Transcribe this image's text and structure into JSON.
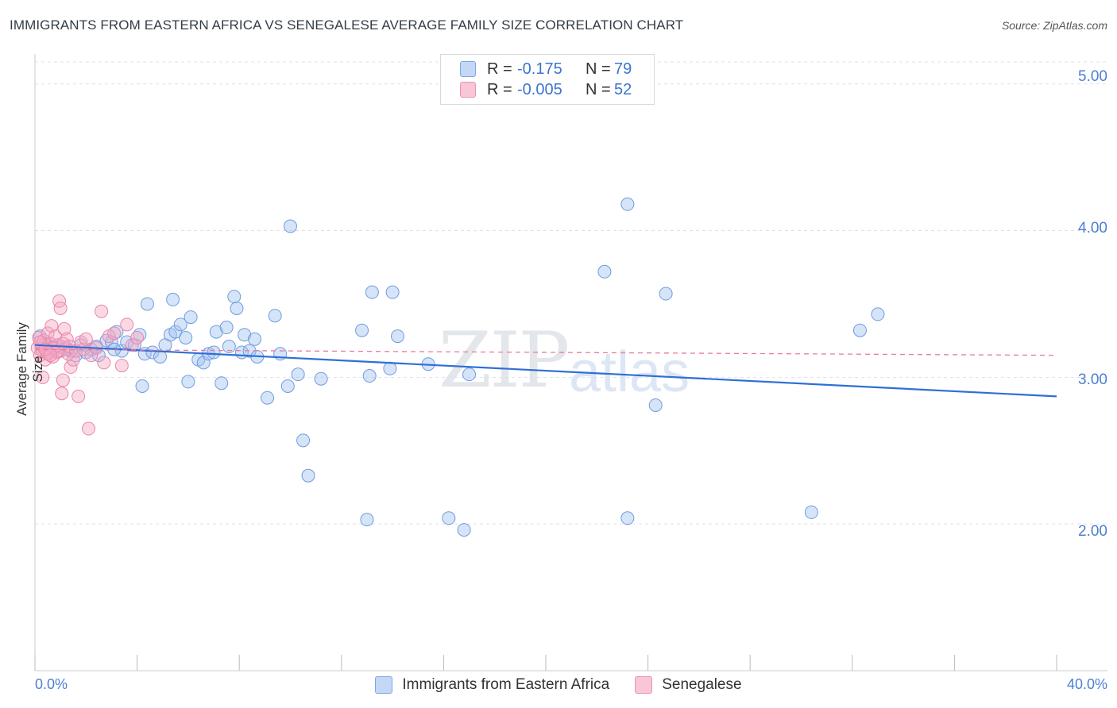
{
  "title": "IMMIGRANTS FROM EASTERN AFRICA VS SENEGALESE AVERAGE FAMILY SIZE CORRELATION CHART",
  "source": "Source: ZipAtlas.com",
  "watermark": {
    "zip": "ZIP",
    "atlas": "atlas"
  },
  "legend": {
    "rows": [
      {
        "r_label": "R =",
        "r_value": "-0.175",
        "n_label": "N =",
        "n_value": "79",
        "color": "#6699e0"
      },
      {
        "r_label": "R =",
        "r_value": "-0.005",
        "n_label": "N =",
        "n_value": "52",
        "color": "#e87aa0"
      }
    ]
  },
  "bottom_legend": [
    "Immigrants from Eastern Africa",
    "Senegalese"
  ],
  "chart_data": {
    "type": "scatter",
    "title": "IMMIGRANTS FROM EASTERN AFRICA VS SENEGALESE AVERAGE FAMILY SIZE CORRELATION CHART",
    "xlabel": "",
    "ylabel": "Average Family Size",
    "xlim": [
      0,
      40
    ],
    "ylim": [
      1.0,
      5.15
    ],
    "x_tick_labels": [
      "0.0%",
      "40.0%"
    ],
    "y_ticks": [
      2.0,
      3.0,
      4.0,
      5.0
    ],
    "y_tick_labels": [
      "2.00",
      "3.00",
      "4.00",
      "5.00"
    ],
    "series": [
      {
        "name": "Immigrants from Eastern Africa",
        "color": "#6699e0",
        "trend": {
          "x": [
            0,
            40
          ],
          "y": [
            3.22,
            2.87
          ]
        },
        "points": [
          [
            0.2,
            3.28
          ],
          [
            0.4,
            3.22
          ],
          [
            0.6,
            3.18
          ],
          [
            0.8,
            3.2
          ],
          [
            1.0,
            3.21
          ],
          [
            1.2,
            3.2
          ],
          [
            1.4,
            3.18
          ],
          [
            1.6,
            3.15
          ],
          [
            1.8,
            3.22
          ],
          [
            2.0,
            3.17
          ],
          [
            2.2,
            3.19
          ],
          [
            2.5,
            3.15
          ],
          [
            2.8,
            3.25
          ],
          [
            3.0,
            3.24
          ],
          [
            3.2,
            3.31
          ],
          [
            3.4,
            3.18
          ],
          [
            3.6,
            3.24
          ],
          [
            3.9,
            3.22
          ],
          [
            4.1,
            3.29
          ],
          [
            4.3,
            3.16
          ],
          [
            4.2,
            2.94
          ],
          [
            4.4,
            3.5
          ],
          [
            4.6,
            3.17
          ],
          [
            4.9,
            3.14
          ],
          [
            5.1,
            3.22
          ],
          [
            5.3,
            3.29
          ],
          [
            5.4,
            3.53
          ],
          [
            5.5,
            3.31
          ],
          [
            5.7,
            3.36
          ],
          [
            5.9,
            3.27
          ],
          [
            6.0,
            2.97
          ],
          [
            6.1,
            3.41
          ],
          [
            6.4,
            3.12
          ],
          [
            6.6,
            3.1
          ],
          [
            6.8,
            3.16
          ],
          [
            7.0,
            3.17
          ],
          [
            7.1,
            3.31
          ],
          [
            7.3,
            2.96
          ],
          [
            7.5,
            3.34
          ],
          [
            7.6,
            3.21
          ],
          [
            7.8,
            3.55
          ],
          [
            7.9,
            3.47
          ],
          [
            8.1,
            3.17
          ],
          [
            8.2,
            3.29
          ],
          [
            8.4,
            3.18
          ],
          [
            8.6,
            3.26
          ],
          [
            8.7,
            3.14
          ],
          [
            9.1,
            2.86
          ],
          [
            9.4,
            3.42
          ],
          [
            9.6,
            3.16
          ],
          [
            9.9,
            2.94
          ],
          [
            10.0,
            4.03
          ],
          [
            10.3,
            3.02
          ],
          [
            10.5,
            2.57
          ],
          [
            10.7,
            2.33
          ],
          [
            11.2,
            2.99
          ],
          [
            12.8,
            3.32
          ],
          [
            13.0,
            2.03
          ],
          [
            13.1,
            3.01
          ],
          [
            13.2,
            3.58
          ],
          [
            13.9,
            3.06
          ],
          [
            14.0,
            3.58
          ],
          [
            14.2,
            3.28
          ],
          [
            15.4,
            3.09
          ],
          [
            16.2,
            2.04
          ],
          [
            16.8,
            1.96
          ],
          [
            17.0,
            3.02
          ],
          [
            22.3,
            3.72
          ],
          [
            23.2,
            4.18
          ],
          [
            23.2,
            2.04
          ],
          [
            24.3,
            2.81
          ],
          [
            24.7,
            3.57
          ],
          [
            30.4,
            2.08
          ],
          [
            32.3,
            3.32
          ],
          [
            33.0,
            3.43
          ],
          [
            1.0,
            3.18
          ],
          [
            2.4,
            3.21
          ],
          [
            3.1,
            3.19
          ],
          [
            0.6,
            3.23
          ]
        ]
      },
      {
        "name": "Senegalese",
        "color": "#e87aa0",
        "trend": {
          "x": [
            0,
            40
          ],
          "y": [
            3.19,
            3.15
          ]
        },
        "points": [
          [
            0.1,
            3.2
          ],
          [
            0.15,
            3.27
          ],
          [
            0.2,
            3.15
          ],
          [
            0.25,
            3.22
          ],
          [
            0.3,
            3.18
          ],
          [
            0.35,
            3.25
          ],
          [
            0.4,
            3.12
          ],
          [
            0.45,
            3.2
          ],
          [
            0.5,
            3.3
          ],
          [
            0.55,
            3.17
          ],
          [
            0.6,
            3.23
          ],
          [
            0.65,
            3.35
          ],
          [
            0.7,
            3.14
          ],
          [
            0.75,
            3.2
          ],
          [
            0.8,
            3.28
          ],
          [
            0.85,
            3.17
          ],
          [
            0.9,
            3.22
          ],
          [
            0.95,
            3.52
          ],
          [
            1.0,
            3.47
          ],
          [
            1.05,
            2.89
          ],
          [
            1.1,
            2.98
          ],
          [
            1.15,
            3.33
          ],
          [
            1.2,
            3.19
          ],
          [
            1.25,
            3.26
          ],
          [
            1.3,
            3.16
          ],
          [
            1.35,
            3.21
          ],
          [
            1.4,
            3.07
          ],
          [
            1.5,
            3.12
          ],
          [
            1.6,
            3.18
          ],
          [
            1.7,
            2.87
          ],
          [
            1.8,
            3.24
          ],
          [
            1.9,
            3.19
          ],
          [
            2.0,
            3.26
          ],
          [
            2.1,
            2.65
          ],
          [
            2.2,
            3.15
          ],
          [
            2.4,
            3.2
          ],
          [
            2.6,
            3.45
          ],
          [
            2.7,
            3.1
          ],
          [
            2.9,
            3.28
          ],
          [
            3.1,
            3.3
          ],
          [
            3.4,
            3.08
          ],
          [
            3.6,
            3.36
          ],
          [
            3.8,
            3.22
          ],
          [
            4.0,
            3.27
          ],
          [
            0.3,
            3.0
          ],
          [
            0.5,
            3.16
          ],
          [
            0.7,
            3.2
          ],
          [
            0.9,
            3.18
          ],
          [
            1.1,
            3.23
          ],
          [
            0.2,
            3.24
          ],
          [
            0.4,
            3.19
          ],
          [
            0.6,
            3.15
          ]
        ]
      }
    ]
  }
}
